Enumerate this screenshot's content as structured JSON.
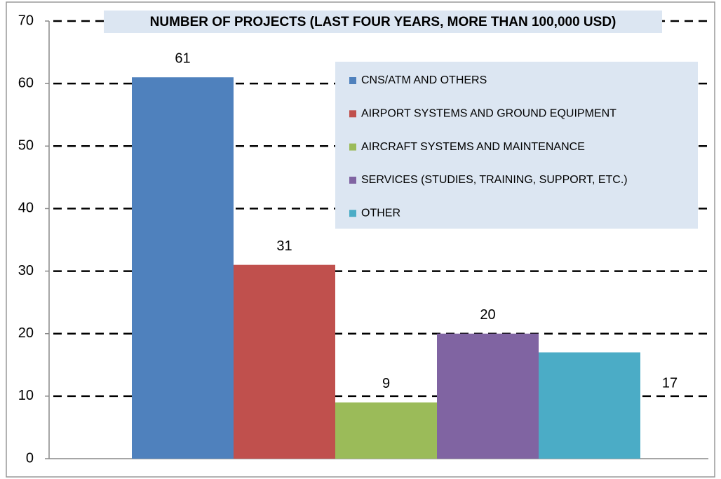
{
  "chart_data": {
    "type": "bar",
    "title": "NUMBER OF PROJECTS (LAST FOUR YEARS, MORE THAN 100,000 USD)",
    "series": [
      {
        "name": "CNS/ATM AND OTHERS",
        "color": "#4f81bd",
        "values": [
          61
        ]
      },
      {
        "name": "AIRPORT SYSTEMS AND GROUND EQUIPMENT",
        "color": "#c0504d",
        "values": [
          31
        ]
      },
      {
        "name": "AIRCRAFT SYSTEMS AND MAINTENANCE",
        "color": "#9bbb59",
        "values": [
          9
        ]
      },
      {
        "name": "SERVICES (STUDIES, TRAINING, SUPPORT, ETC.)",
        "color": "#8064a2",
        "values": [
          20
        ]
      },
      {
        "name": "OTHER",
        "color": "#4bacc6",
        "values": [
          17
        ]
      }
    ],
    "ylim": [
      0,
      70
    ],
    "yticks": [
      0,
      10,
      20,
      30,
      40,
      50,
      60,
      70
    ],
    "grid": true,
    "legend": "upper right"
  }
}
